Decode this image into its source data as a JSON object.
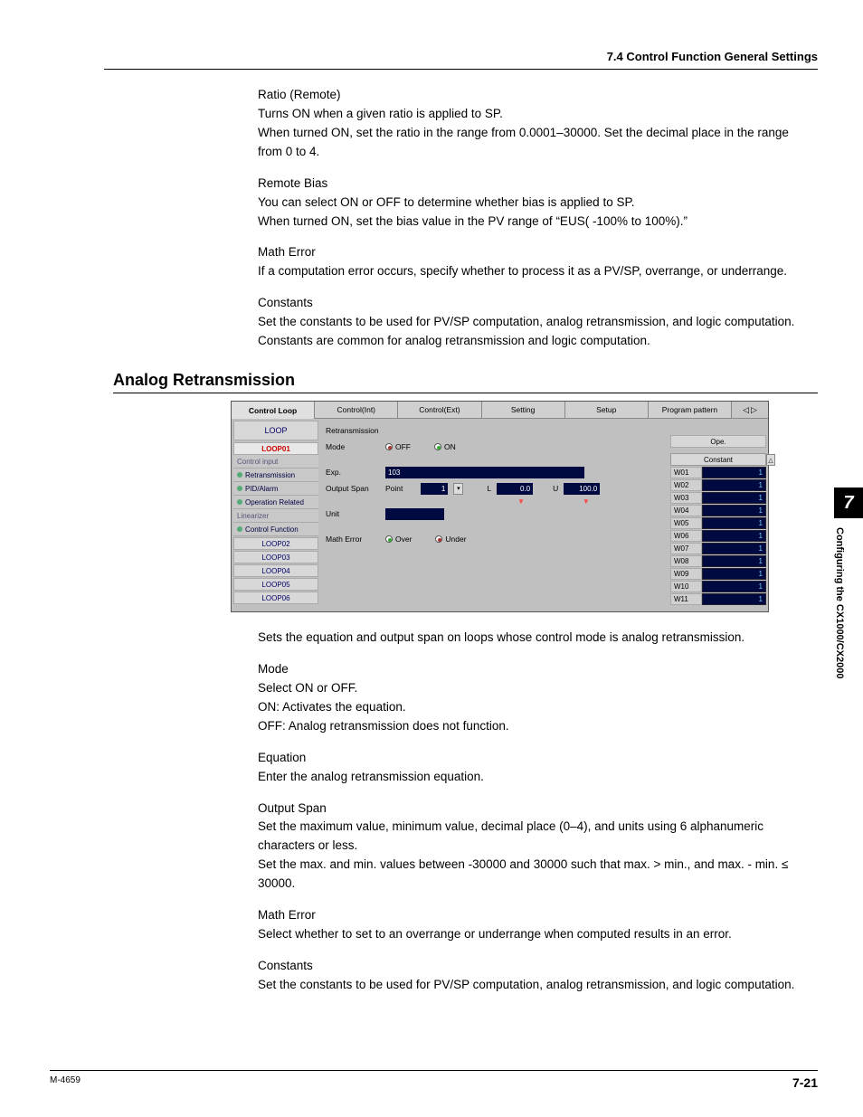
{
  "header": {
    "section": "7.4  Control Function General Settings"
  },
  "text": {
    "ratio_title": "Ratio (Remote)",
    "ratio_p1": "Turns ON when a given ratio is applied to SP.",
    "ratio_p2": "When turned ON, set the ratio in the range from 0.0001–30000.  Set the decimal place in the range from 0 to 4.",
    "remote_title": "Remote Bias",
    "remote_p1": "You can select ON or OFF to determine whether bias is applied to SP.",
    "remote_p2": "When turned ON, set the bias value in the PV range of “EUS( -100% to 100%).”",
    "math_title": "Math Error",
    "math_p1": "If a computation error occurs, specify whether to process it as a PV/SP, overrange, or underrange.",
    "const_title": "Constants",
    "const_p1": "Set the constants to be used for PV/SP computation, analog retransmission, and logic computation.  Constants are common for analog retransmission and logic computation.",
    "analog_heading": "Analog Retransmission",
    "analog_intro": "Sets the equation and output span on loops whose control mode is analog retransmission.",
    "mode_title": "Mode",
    "mode_p1": "Select ON or OFF.",
    "mode_p2": "ON:   Activates the equation.",
    "mode_p3": "OFF: Analog retransmission does not function.",
    "eq_title": "Equation",
    "eq_p1": "Enter the analog retransmission equation.",
    "out_title": "Output Span",
    "out_p1": "Set the maximum value, minimum value, decimal place (0–4), and units using 6 alphanumeric characters or less.",
    "out_p2": "Set the max. and min. values between -30000 and 30000 such that max. > min., and max. - min. ≤ 30000.",
    "math2_title": "Math Error",
    "math2_p1": "Select whether to set to an overrange or underrange when computed results in an error.",
    "const2_title": "Constants",
    "const2_p1": "Set the constants to be used for PV/SP computation, analog retransmission, and logic computation."
  },
  "ui": {
    "tabs": [
      "Control Loop",
      "Control(Int)",
      "Control(Ext)",
      "Setting",
      "Setup",
      "Program pattern"
    ],
    "active_tab": 0,
    "nav_left": "◁",
    "nav_right": "▷",
    "left": {
      "header": "LOOP",
      "active": "LOOP01",
      "items": [
        {
          "label": "Control input",
          "dim": true,
          "dot": false
        },
        {
          "label": "Retransmission",
          "dim": false,
          "dot": true
        },
        {
          "label": "PID/Alarm",
          "dim": false,
          "dot": true
        },
        {
          "label": "Operation Related",
          "dim": false,
          "dot": true
        },
        {
          "label": "Linearizer",
          "dim": true,
          "dot": false
        },
        {
          "label": "Control Function",
          "dim": false,
          "dot": true
        }
      ],
      "loops": [
        "LOOP02",
        "LOOP03",
        "LOOP04",
        "LOOP05",
        "LOOP06"
      ]
    },
    "middle": {
      "retrans_label": "Retransmission",
      "mode_label": "Mode",
      "off_label": "OFF",
      "on_label": "ON",
      "exp_label": "Exp.",
      "exp_value": "103",
      "out_label": "Output Span",
      "point_label": "Point",
      "point_value": "1",
      "l_label": "L",
      "l_value": "0.0",
      "l_marker": "▼",
      "u_label": "U",
      "u_value": "100.0",
      "u_marker": "▼",
      "unit_label": "Unit",
      "unit_value": "",
      "math_label": "Math Error",
      "over_label": "Over",
      "under_label": "Under"
    },
    "right": {
      "ope_label": "Ope.",
      "constant_header": "Constant",
      "scroll_up": "△",
      "rows": [
        {
          "k": "W01",
          "v": "1"
        },
        {
          "k": "W02",
          "v": "1"
        },
        {
          "k": "W03",
          "v": "1"
        },
        {
          "k": "W04",
          "v": "1"
        },
        {
          "k": "W05",
          "v": "1"
        },
        {
          "k": "W06",
          "v": "1"
        },
        {
          "k": "W07",
          "v": "1"
        },
        {
          "k": "W08",
          "v": "1"
        },
        {
          "k": "W09",
          "v": "1"
        },
        {
          "k": "W10",
          "v": "1"
        },
        {
          "k": "W11",
          "v": "1"
        }
      ]
    }
  },
  "side": {
    "chapter_num": "7",
    "chapter_text": "Configuring the CX1000/CX2000"
  },
  "footer": {
    "doc_id": "M-4659",
    "page": "7-21"
  }
}
